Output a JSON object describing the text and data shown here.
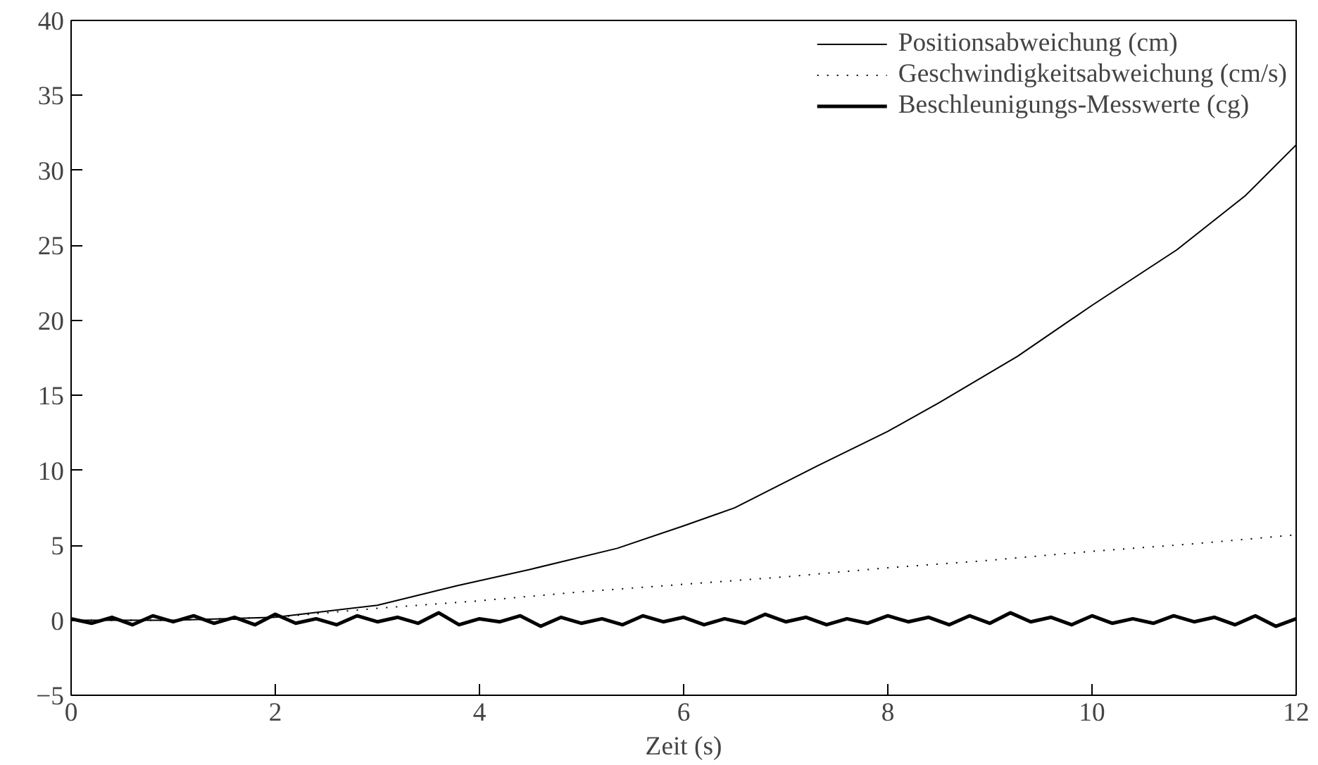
{
  "chart_data": {
    "type": "line",
    "xlabel": "Zeit (s)",
    "xlim": [
      0,
      12
    ],
    "ylim": [
      -5,
      40
    ],
    "xticks": [
      0,
      2,
      4,
      6,
      8,
      10,
      12
    ],
    "yticks": [
      -5,
      0,
      5,
      10,
      15,
      20,
      25,
      30,
      35,
      40
    ],
    "legend": "top right",
    "grid": false,
    "series": [
      {
        "name": "Positionsabweichung (cm)",
        "color": "#000000",
        "line_style": "solid",
        "x": [
          0,
          1,
          2,
          3,
          3.78,
          4.5,
          5.35,
          6,
          6.5,
          7.31,
          8,
          8.5,
          9.27,
          10,
          10.83,
          11.5,
          12
        ],
        "values": [
          0,
          0,
          0.2,
          1.0,
          2.3,
          3.4,
          4.8,
          6.3,
          7.5,
          10.3,
          12.6,
          14.5,
          17.6,
          21.0,
          24.7,
          28.3,
          31.7
        ]
      },
      {
        "name": "Geschwindigkeitsabweichung (cm/s)",
        "color": "#000000",
        "line_style": "dotted",
        "x": [
          0,
          1,
          2,
          3,
          4,
          5,
          6,
          7,
          8,
          9,
          10,
          11,
          12
        ],
        "values": [
          0,
          0,
          0.2,
          0.8,
          1.3,
          1.9,
          2.4,
          2.9,
          3.5,
          4.0,
          4.6,
          5.1,
          5.7
        ]
      },
      {
        "name": "Beschleunigungs-Messwerte (cg)",
        "color": "#000000",
        "line_style": "solid",
        "x": [
          0,
          0.2,
          0.4,
          0.6,
          0.8,
          1.0,
          1.2,
          1.4,
          1.6,
          1.8,
          2.0,
          2.2,
          2.4,
          2.6,
          2.8,
          3.0,
          3.2,
          3.4,
          3.6,
          3.8,
          4.0,
          4.2,
          4.4,
          4.6,
          4.8,
          5.0,
          5.2,
          5.4,
          5.6,
          5.8,
          6.0,
          6.2,
          6.4,
          6.6,
          6.8,
          7.0,
          7.2,
          7.4,
          7.6,
          7.8,
          8.0,
          8.2,
          8.4,
          8.6,
          8.8,
          9.0,
          9.2,
          9.4,
          9.6,
          9.8,
          10.0,
          10.2,
          10.4,
          10.6,
          10.8,
          11.0,
          11.2,
          11.4,
          11.6,
          11.8,
          12.0
        ],
        "values": [
          0.1,
          -0.2,
          0.2,
          -0.3,
          0.3,
          -0.1,
          0.3,
          -0.2,
          0.2,
          -0.3,
          0.4,
          -0.2,
          0.1,
          -0.3,
          0.3,
          -0.1,
          0.2,
          -0.2,
          0.5,
          -0.3,
          0.1,
          -0.1,
          0.3,
          -0.4,
          0.2,
          -0.2,
          0.1,
          -0.3,
          0.3,
          -0.1,
          0.2,
          -0.3,
          0.1,
          -0.2,
          0.4,
          -0.1,
          0.2,
          -0.3,
          0.1,
          -0.2,
          0.3,
          -0.1,
          0.2,
          -0.3,
          0.3,
          -0.2,
          0.5,
          -0.1,
          0.2,
          -0.3,
          0.3,
          -0.2,
          0.1,
          -0.2,
          0.3,
          -0.1,
          0.2,
          -0.3,
          0.3,
          -0.4,
          0.1
        ]
      }
    ]
  }
}
